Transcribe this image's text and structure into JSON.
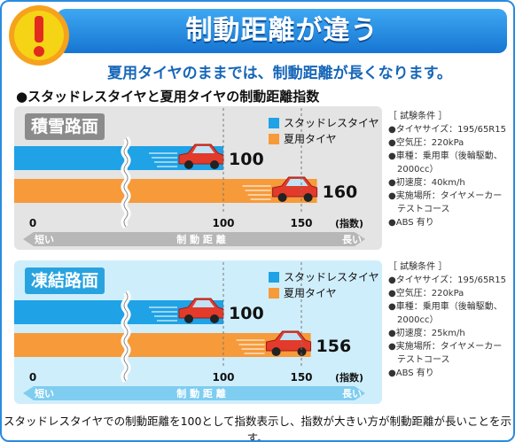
{
  "banner": {
    "title": "制動距離が違う"
  },
  "subtitle": "夏用タイヤのままでは、制動距離が長くなります。",
  "section_heading": "●スタッドレスタイヤと夏用タイヤの制動距離指数",
  "legend": {
    "studless": "スタッドレスタイヤ",
    "summer": "夏用タイヤ"
  },
  "colors": {
    "studless": "#1fa2e6",
    "summer": "#f79a3a",
    "banner": "#1e86de",
    "car": "#e23b2c"
  },
  "axis": {
    "unit": "(指数)",
    "arrow_short": "短い",
    "arrow_middle": "制 動 距 離",
    "arrow_long": "長い"
  },
  "footnote": "スタッドレスタイヤでの制動距離を100として指数表示し、指数が大きい方が制動距離が長いことを示す。",
  "chart_data": [
    {
      "type": "bar",
      "title": "積雪路面",
      "categories": [
        "スタッドレスタイヤ",
        "夏用タイヤ"
      ],
      "values": [
        100,
        160
      ],
      "ticks": [
        0,
        100,
        150
      ],
      "xlim": [
        0,
        170
      ],
      "xlabel": "(指数)",
      "axis_break": true,
      "conditions": [
        "［ 試験条件 ］",
        "●タイヤサイズ：195/65R15",
        "●空気圧：220kPa",
        "●車種：乗用車（後輪駆動、",
        "　2000cc）",
        "●初速度：40km/h",
        "●実施場所：タイヤメーカー",
        "　テストコース",
        "●ABS 有り"
      ]
    },
    {
      "type": "bar",
      "title": "凍結路面",
      "categories": [
        "スタッドレスタイヤ",
        "夏用タイヤ"
      ],
      "values": [
        100,
        156
      ],
      "ticks": [
        0,
        100,
        150
      ],
      "xlim": [
        0,
        170
      ],
      "xlabel": "(指数)",
      "axis_break": true,
      "conditions": [
        "［ 試験条件 ］",
        "●タイヤサイズ：195/65R15",
        "●空気圧：220kPa",
        "●車種：乗用車（後輪駆動、",
        "　2000cc）",
        "●初速度：25km/h",
        "●実施場所：タイヤメーカー",
        "　テストコース",
        "●ABS 有り"
      ]
    }
  ]
}
